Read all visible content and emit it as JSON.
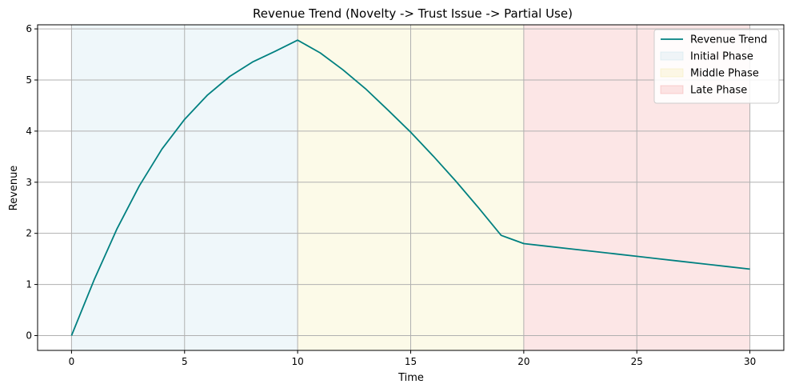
{
  "chart_data": {
    "type": "line",
    "title": "Revenue Trend (Novelty -> Trust Issue -> Partial Use)",
    "xlabel": "Time",
    "ylabel": "Revenue",
    "xlim": [
      -1.5,
      31.5
    ],
    "ylim": [
      -0.29,
      6.08
    ],
    "xticks": [
      0,
      5,
      10,
      15,
      20,
      25,
      30
    ],
    "yticks": [
      0,
      1,
      2,
      3,
      4,
      5,
      6
    ],
    "grid": true,
    "legend_position": "top-right",
    "series": [
      {
        "name": "Revenue Trend",
        "color": "#008080",
        "x": [
          0,
          1,
          2,
          3,
          4,
          5,
          6,
          7,
          8,
          9,
          10,
          11,
          12,
          13,
          14,
          15,
          16,
          17,
          18,
          19,
          20,
          21,
          22,
          23,
          24,
          25,
          26,
          27,
          28,
          29,
          30
        ],
        "y": [
          0,
          1.09,
          2.08,
          2.93,
          3.65,
          4.23,
          4.7,
          5.07,
          5.35,
          5.56,
          5.78,
          5.53,
          5.2,
          4.83,
          4.41,
          3.98,
          3.51,
          3.02,
          2.5,
          1.96,
          1.8,
          1.75,
          1.7,
          1.65,
          1.6,
          1.55,
          1.5,
          1.45,
          1.4,
          1.35,
          1.3
        ]
      }
    ],
    "phases": [
      {
        "name": "Initial Phase",
        "start": 0,
        "end": 10,
        "color": "#add8e6"
      },
      {
        "name": "Middle Phase",
        "start": 10,
        "end": 20,
        "color": "#f0e68c"
      },
      {
        "name": "Late Phase",
        "start": 20,
        "end": 30,
        "color": "#f08080"
      }
    ]
  }
}
